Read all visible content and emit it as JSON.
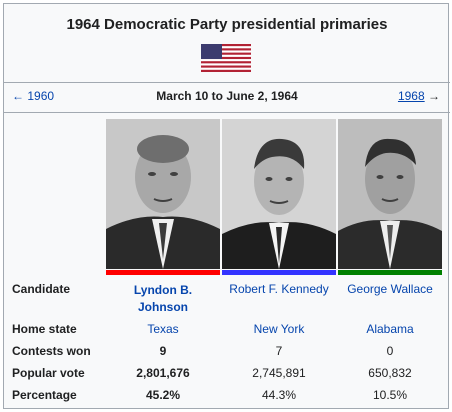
{
  "title": "1964 Democratic Party presidential primaries",
  "flag_icon": "us-flag-icon",
  "nav": {
    "prev_arrow": "←",
    "prev_label": "1960",
    "date_range": "March 10 to June 2, 1964",
    "next_label": "1968",
    "next_arrow": "→"
  },
  "row_labels": {
    "candidate": "Candidate",
    "home_state": "Home state",
    "contests_won": "Contests won",
    "popular_vote": "Popular vote",
    "percentage": "Percentage"
  },
  "candidates": [
    {
      "name": "Lyndon B. Johnson",
      "name_line1": "Lyndon B.",
      "name_line2": "Johnson",
      "home_state": "Texas",
      "contests_won": "9",
      "popular_vote": "2,801,676",
      "percentage": "45.2%",
      "color": "#ff0000",
      "winner": true
    },
    {
      "name": "Robert F. Kennedy",
      "home_state": "New York",
      "contests_won": "7",
      "popular_vote": "2,745,891",
      "percentage": "44.3%",
      "color": "#3333ff",
      "winner": false
    },
    {
      "name": "George Wallace",
      "home_state": "Alabama",
      "contests_won": "0",
      "popular_vote": "650,832",
      "percentage": "10.5%",
      "color": "#008000",
      "winner": false
    }
  ]
}
